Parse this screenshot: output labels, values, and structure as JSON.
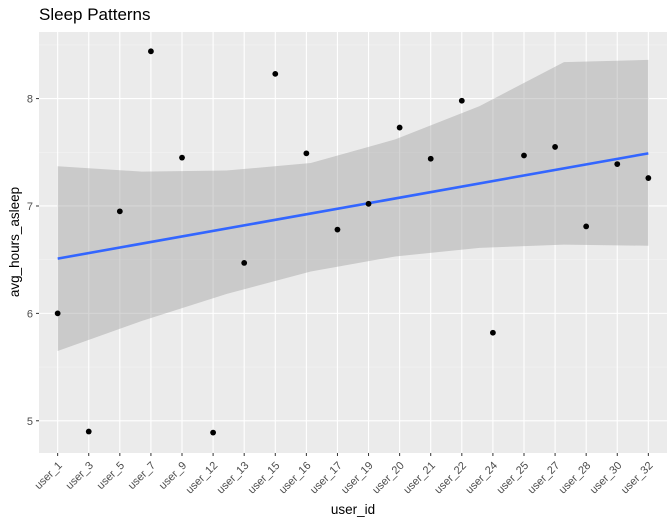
{
  "chart_data": {
    "type": "scatter",
    "title": "Sleep Patterns",
    "xlabel": "user_id",
    "ylabel": "avg_hours_asleep",
    "categories": [
      "user_1",
      "user_3",
      "user_5",
      "user_7",
      "user_9",
      "user_12",
      "user_13",
      "user_15",
      "user_16",
      "user_17",
      "user_19",
      "user_20",
      "user_21",
      "user_22",
      "user_24",
      "user_25",
      "user_27",
      "user_28",
      "user_30",
      "user_32"
    ],
    "values": [
      6.0,
      4.9,
      6.95,
      8.44,
      7.45,
      4.89,
      6.47,
      8.23,
      7.49,
      6.78,
      7.02,
      7.73,
      7.44,
      7.98,
      5.82,
      7.47,
      7.55,
      6.81,
      7.39,
      7.26
    ],
    "y_ticks": [
      5,
      6,
      7,
      8
    ],
    "ylim": [
      4.7,
      8.62
    ],
    "grid": true,
    "trend": {
      "method": "linear",
      "y_start": 6.51,
      "y_end": 7.49,
      "band_lower": [
        5.65,
        5.93,
        6.18,
        6.39,
        6.53,
        6.61,
        6.64,
        6.63
      ],
      "band_upper": [
        7.37,
        7.32,
        7.33,
        7.4,
        7.62,
        7.93,
        8.34,
        8.36
      ]
    },
    "colors": {
      "panel": "#ebebeb",
      "grid_major": "#ffffff",
      "grid_minor": "#f3f3f3",
      "point": "#000000",
      "trend_line": "#3366ff",
      "band": "#999999"
    }
  }
}
